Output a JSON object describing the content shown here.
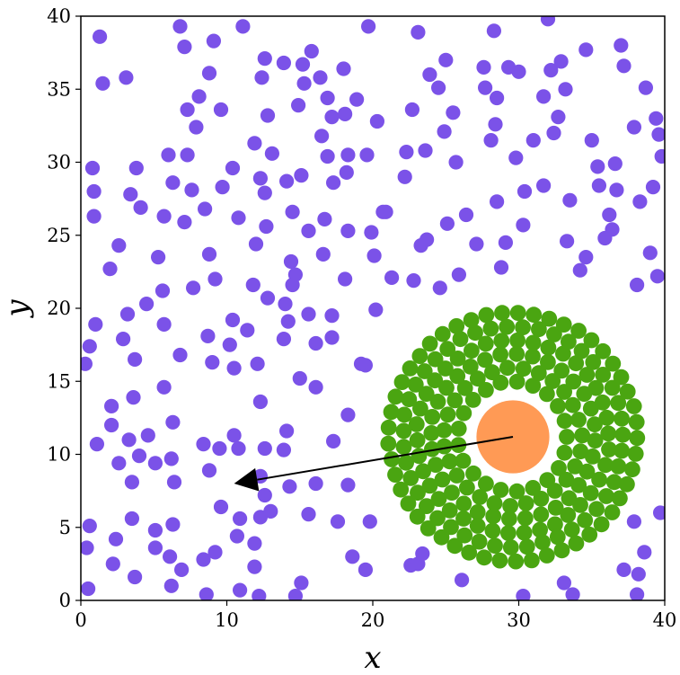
{
  "chart_data": {
    "type": "scatter",
    "title": "",
    "xlabel": "x",
    "ylabel": "y",
    "xlim": [
      0,
      40
    ],
    "ylim": [
      0,
      40
    ],
    "xticks": [
      "0",
      "10",
      "20",
      "30",
      "40"
    ],
    "yticks": [
      "0",
      "5",
      "10",
      "15",
      "20",
      "25",
      "30",
      "35",
      "40"
    ],
    "grid": false,
    "legend": "none",
    "colors": {
      "free_particles": "#7b52e8",
      "cluster_particles": "#4aa511",
      "intruder": "#ff9a55",
      "arrow": "#000000"
    },
    "intruder": {
      "x": 29.6,
      "y": 11.2,
      "radius": 2.5
    },
    "arrow": {
      "from": [
        29.6,
        11.2
      ],
      "to": [
        10.5,
        8.0
      ]
    },
    "cluster": {
      "center": [
        29.6,
        11.2
      ],
      "inner_radius": 3.2,
      "outer_radius": 9.6,
      "particle_radius": 0.55
    },
    "free_particles_radius": 0.5,
    "free_particles": [
      [
        0.5,
        0.8
      ],
      [
        0.4,
        3.6
      ],
      [
        0.6,
        5.1
      ],
      [
        2.2,
        2.5
      ],
      [
        2.4,
        4.2
      ],
      [
        3.7,
        1.6
      ],
      [
        3.5,
        5.6
      ],
      [
        5.1,
        3.6
      ],
      [
        5.1,
        4.8
      ],
      [
        6.1,
        3.0
      ],
      [
        6.2,
        1.0
      ],
      [
        6.3,
        5.2
      ],
      [
        6.9,
        2.1
      ],
      [
        8.4,
        2.8
      ],
      [
        8.6,
        0.4
      ],
      [
        9.2,
        3.3
      ],
      [
        9.6,
        6.4
      ],
      [
        10.7,
        4.4
      ],
      [
        10.9,
        0.7
      ],
      [
        10.9,
        5.6
      ],
      [
        11.9,
        2.3
      ],
      [
        11.9,
        3.9
      ],
      [
        12.2,
        0.3
      ],
      [
        12.3,
        5.7
      ],
      [
        12.6,
        7.2
      ],
      [
        15.1,
        1.2
      ],
      [
        14.7,
        0.3
      ],
      [
        15.6,
        5.9
      ],
      [
        17.6,
        5.4
      ],
      [
        18.6,
        3.0
      ],
      [
        19.5,
        2.1
      ],
      [
        19.8,
        5.4
      ],
      [
        1.1,
        10.7
      ],
      [
        2.1,
        12.0
      ],
      [
        2.6,
        9.4
      ],
      [
        3.3,
        11.0
      ],
      [
        3.5,
        8.1
      ],
      [
        3.6,
        13.9
      ],
      [
        4.0,
        9.9
      ],
      [
        4.6,
        11.3
      ],
      [
        5.1,
        9.4
      ],
      [
        6.2,
        9.7
      ],
      [
        6.3,
        12.2
      ],
      [
        6.4,
        8.1
      ],
      [
        8.4,
        10.7
      ],
      [
        8.8,
        8.9
      ],
      [
        9.5,
        10.4
      ],
      [
        10.5,
        11.3
      ],
      [
        10.8,
        10.4
      ],
      [
        12.3,
        8.5
      ],
      [
        12.3,
        13.6
      ],
      [
        12.6,
        10.4
      ],
      [
        13.0,
        6.1
      ],
      [
        13.9,
        10.3
      ],
      [
        14.1,
        11.6
      ],
      [
        14.3,
        7.8
      ],
      [
        15.0,
        15.2
      ],
      [
        16.1,
        14.6
      ],
      [
        16.1,
        8.0
      ],
      [
        17.3,
        10.9
      ],
      [
        18.3,
        7.9
      ],
      [
        18.3,
        12.7
      ],
      [
        19.5,
        16.1
      ],
      [
        0.3,
        16.2
      ],
      [
        0.6,
        17.4
      ],
      [
        1.0,
        18.9
      ],
      [
        2.1,
        13.3
      ],
      [
        2.9,
        17.9
      ],
      [
        3.2,
        19.6
      ],
      [
        3.7,
        16.5
      ],
      [
        4.5,
        20.3
      ],
      [
        5.6,
        21.2
      ],
      [
        5.7,
        14.6
      ],
      [
        5.7,
        18.9
      ],
      [
        6.8,
        16.8
      ],
      [
        7.7,
        21.4
      ],
      [
        8.7,
        18.1
      ],
      [
        9.0,
        16.3
      ],
      [
        9.2,
        22.0
      ],
      [
        10.2,
        17.5
      ],
      [
        10.4,
        19.2
      ],
      [
        10.5,
        15.9
      ],
      [
        11.4,
        18.5
      ],
      [
        11.8,
        21.6
      ],
      [
        12.1,
        16.2
      ],
      [
        12.8,
        20.7
      ],
      [
        13.9,
        17.9
      ],
      [
        14.0,
        20.3
      ],
      [
        14.2,
        19.1
      ],
      [
        14.5,
        21.6
      ],
      [
        15.6,
        19.6
      ],
      [
        16.1,
        17.6
      ],
      [
        17.2,
        19.5
      ],
      [
        17.2,
        18.0
      ],
      [
        18.1,
        22.0
      ],
      [
        19.2,
        16.2
      ],
      [
        0.8,
        29.6
      ],
      [
        0.9,
        28.0
      ],
      [
        0.9,
        26.3
      ],
      [
        2.0,
        22.7
      ],
      [
        2.6,
        24.3
      ],
      [
        3.4,
        27.8
      ],
      [
        3.8,
        29.6
      ],
      [
        4.1,
        26.9
      ],
      [
        5.3,
        23.5
      ],
      [
        5.7,
        26.3
      ],
      [
        6.0,
        30.5
      ],
      [
        6.3,
        28.6
      ],
      [
        7.1,
        25.9
      ],
      [
        7.3,
        30.5
      ],
      [
        7.6,
        28.1
      ],
      [
        8.5,
        26.8
      ],
      [
        8.8,
        23.7
      ],
      [
        9.7,
        28.3
      ],
      [
        10.4,
        29.6
      ],
      [
        10.8,
        26.2
      ],
      [
        11.9,
        31.3
      ],
      [
        12.0,
        24.4
      ],
      [
        12.3,
        28.9
      ],
      [
        12.6,
        27.9
      ],
      [
        12.7,
        25.6
      ],
      [
        13.1,
        30.6
      ],
      [
        14.1,
        28.7
      ],
      [
        14.4,
        23.2
      ],
      [
        14.5,
        26.6
      ],
      [
        14.7,
        22.3
      ],
      [
        15.1,
        29.1
      ],
      [
        15.6,
        25.3
      ],
      [
        16.5,
        31.8
      ],
      [
        16.6,
        23.7
      ],
      [
        16.7,
        26.1
      ],
      [
        16.9,
        30.4
      ],
      [
        17.3,
        28.6
      ],
      [
        18.2,
        29.3
      ],
      [
        18.3,
        30.5
      ],
      [
        18.3,
        25.3
      ],
      [
        19.6,
        30.5
      ],
      [
        19.9,
        25.2
      ],
      [
        20.1,
        23.6
      ],
      [
        20.7,
        26.6
      ],
      [
        1.3,
        38.6
      ],
      [
        1.5,
        35.4
      ],
      [
        3.1,
        35.8
      ],
      [
        6.8,
        39.3
      ],
      [
        7.1,
        37.9
      ],
      [
        7.3,
        33.6
      ],
      [
        7.9,
        32.4
      ],
      [
        8.1,
        34.5
      ],
      [
        8.8,
        36.1
      ],
      [
        9.1,
        38.3
      ],
      [
        9.6,
        33.6
      ],
      [
        11.1,
        39.3
      ],
      [
        12.4,
        35.8
      ],
      [
        12.6,
        37.1
      ],
      [
        12.8,
        33.2
      ],
      [
        13.9,
        36.8
      ],
      [
        14.9,
        33.9
      ],
      [
        15.2,
        36.7
      ],
      [
        15.3,
        35.4
      ],
      [
        15.8,
        37.6
      ],
      [
        16.4,
        35.8
      ],
      [
        16.9,
        34.4
      ],
      [
        17.2,
        33.1
      ],
      [
        18.0,
        36.4
      ],
      [
        18.1,
        33.3
      ],
      [
        18.9,
        34.3
      ],
      [
        19.7,
        39.3
      ],
      [
        20.3,
        32.8
      ],
      [
        20.9,
        26.6
      ],
      [
        20.2,
        19.9
      ],
      [
        21.3,
        22.1
      ],
      [
        22.2,
        29.0
      ],
      [
        22.3,
        30.7
      ],
      [
        22.8,
        21.9
      ],
      [
        23.3,
        24.3
      ],
      [
        23.6,
        30.8
      ],
      [
        23.7,
        24.7
      ],
      [
        23.9,
        36.0
      ],
      [
        22.7,
        33.6
      ],
      [
        23.1,
        38.9
      ],
      [
        24.5,
        35.1
      ],
      [
        24.9,
        32.1
      ],
      [
        25.0,
        37.0
      ],
      [
        25.5,
        33.4
      ],
      [
        25.7,
        30.0
      ],
      [
        24.6,
        21.4
      ],
      [
        25.1,
        25.8
      ],
      [
        25.9,
        22.3
      ],
      [
        26.4,
        26.4
      ],
      [
        27.1,
        24.4
      ],
      [
        27.6,
        36.5
      ],
      [
        27.7,
        35.1
      ],
      [
        28.1,
        31.5
      ],
      [
        28.4,
        32.6
      ],
      [
        28.5,
        34.4
      ],
      [
        28.3,
        39.0
      ],
      [
        28.5,
        27.3
      ],
      [
        28.8,
        22.8
      ],
      [
        29.1,
        24.5
      ],
      [
        29.3,
        36.5
      ],
      [
        29.8,
        30.3
      ],
      [
        30.0,
        36.2
      ],
      [
        30.4,
        28.0
      ],
      [
        30.3,
        25.7
      ],
      [
        31.0,
        31.5
      ],
      [
        31.7,
        28.4
      ],
      [
        31.7,
        34.5
      ],
      [
        32.0,
        39.8
      ],
      [
        32.2,
        36.3
      ],
      [
        32.4,
        32.0
      ],
      [
        32.7,
        33.1
      ],
      [
        32.9,
        36.9
      ],
      [
        33.2,
        35.0
      ],
      [
        33.3,
        24.6
      ],
      [
        33.5,
        27.4
      ],
      [
        34.2,
        22.6
      ],
      [
        34.6,
        23.5
      ],
      [
        34.6,
        37.7
      ],
      [
        35.0,
        31.5
      ],
      [
        35.4,
        29.7
      ],
      [
        35.5,
        28.4
      ],
      [
        35.9,
        24.8
      ],
      [
        36.2,
        26.4
      ],
      [
        36.4,
        25.4
      ],
      [
        36.6,
        29.9
      ],
      [
        36.7,
        28.1
      ],
      [
        37.0,
        38.0
      ],
      [
        37.2,
        36.6
      ],
      [
        37.9,
        32.4
      ],
      [
        38.3,
        27.3
      ],
      [
        38.1,
        21.6
      ],
      [
        38.7,
        35.1
      ],
      [
        39.0,
        23.8
      ],
      [
        39.2,
        28.3
      ],
      [
        39.4,
        33.0
      ],
      [
        39.5,
        22.2
      ],
      [
        39.6,
        31.9
      ],
      [
        39.8,
        30.4
      ],
      [
        22.6,
        2.4
      ],
      [
        23.1,
        2.5
      ],
      [
        23.4,
        3.2
      ],
      [
        26.1,
        1.4
      ],
      [
        30.3,
        0.3
      ],
      [
        33.1,
        1.2
      ],
      [
        33.7,
        0.4
      ],
      [
        37.2,
        2.1
      ],
      [
        37.9,
        5.4
      ],
      [
        38.1,
        0.4
      ],
      [
        38.2,
        1.8
      ],
      [
        38.6,
        3.3
      ],
      [
        39.7,
        6.0
      ]
    ]
  }
}
